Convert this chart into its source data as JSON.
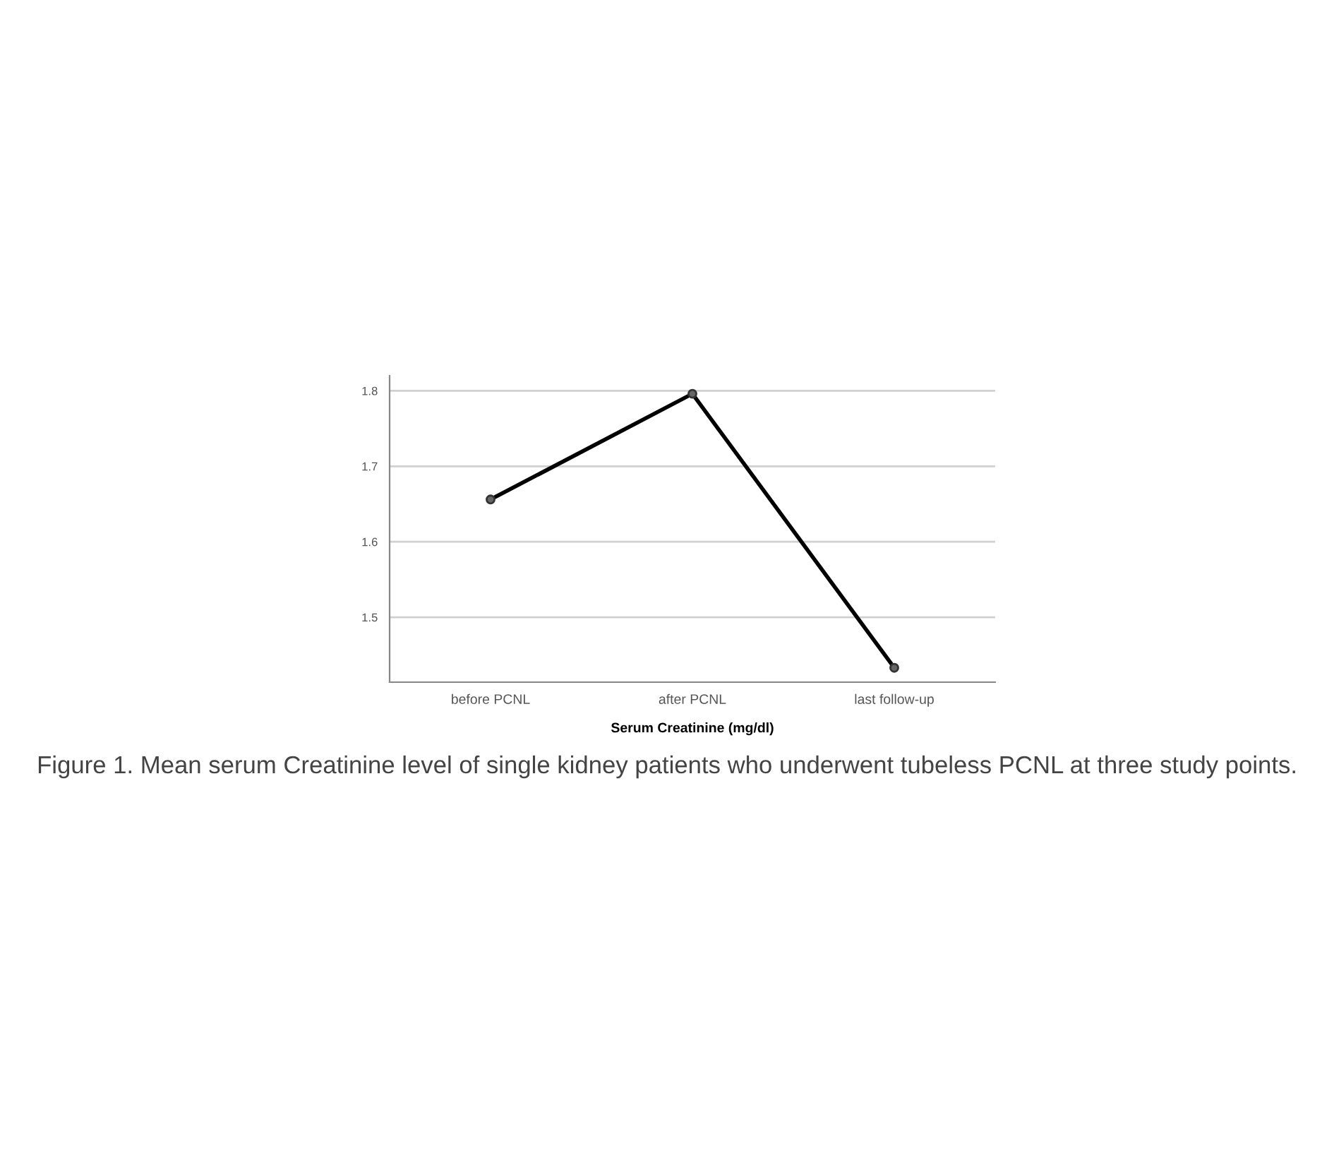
{
  "chart_data": {
    "type": "line",
    "xlabel": "Serum Creatinine (mg/dl)",
    "categories": [
      "before PCNL",
      "after PCNL",
      "last follow-up"
    ],
    "series": [
      {
        "color": "#000000",
        "values": [
          1.656,
          1.796,
          1.433
        ]
      }
    ],
    "ylim": [
      1.414,
      1.82
    ],
    "yticks": [
      1.5,
      1.6,
      1.7,
      1.8
    ],
    "grid": "y",
    "marker": "circle",
    "line_style": "solid",
    "annotations": [
      "Figure 1. Mean serum Creatinine level of single kidney patients who underwent tubeless PCNL at three study points."
    ]
  }
}
